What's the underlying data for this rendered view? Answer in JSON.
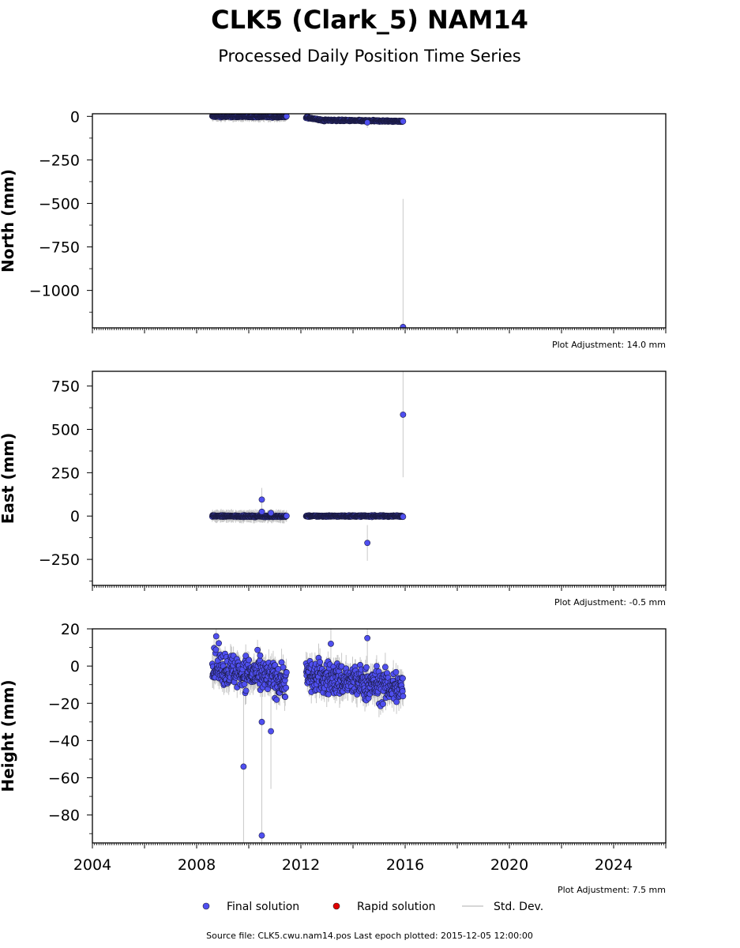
{
  "title": "CLK5 (Clark_5) NAM14",
  "subtitle": "Processed Daily Position Time Series",
  "footer": "Source file: CLK5.cwu.nam14.pos  Last epoch plotted: 2015-12-05 12:00:00",
  "legend": {
    "final": "Final solution",
    "rapid": "Rapid solution",
    "std": "Std. Dev."
  },
  "colors": {
    "final": "#4f4ff0",
    "rapid": "#e00000",
    "std": "#c8c8c8"
  },
  "chart_data": [
    {
      "type": "scatter",
      "ylabel": "North (mm)",
      "adjustment": "Plot Adjustment: 14.0 mm",
      "xlim": [
        2004,
        2026
      ],
      "ylim": [
        -1215,
        15
      ],
      "yticks": [
        0,
        -250,
        -500,
        -750,
        -1000
      ],
      "yticklabels": [
        "0",
        "−250",
        "−500",
        "−750",
        "−1000"
      ],
      "segments": [
        {
          "x_start": 2008.6,
          "x_end": 2011.45,
          "y_start": 0,
          "y_end": -2,
          "noise": 4,
          "std": 25
        },
        {
          "x_start": 2012.2,
          "x_end": 2012.9,
          "y_start": -5,
          "y_end": -25,
          "noise": 4,
          "std": 15
        },
        {
          "x_start": 2012.9,
          "x_end": 2015.92,
          "y_start": -22,
          "y_end": -28,
          "noise": 4,
          "std": 15
        }
      ],
      "outliers": [
        {
          "x": 2014.55,
          "y": -35
        },
        {
          "x": 2015.92,
          "y": -1210
        }
      ]
    },
    {
      "type": "scatter",
      "ylabel": "East (mm)",
      "adjustment": "Plot Adjustment: -0.5 mm",
      "xlim": [
        2004,
        2026
      ],
      "ylim": [
        -400,
        835
      ],
      "yticks": [
        750,
        500,
        250,
        0,
        -250
      ],
      "yticklabels": [
        "750",
        "500",
        "250",
        "0",
        "−250"
      ],
      "segments": [
        {
          "x_start": 2008.6,
          "x_end": 2011.45,
          "y_start": 0,
          "y_end": -2,
          "noise": 4,
          "std": 30
        },
        {
          "x_start": 2012.2,
          "x_end": 2015.92,
          "y_start": 0,
          "y_end": 0,
          "noise": 4,
          "std": 15
        }
      ],
      "outliers": [
        {
          "x": 2010.5,
          "y": 95
        },
        {
          "x": 2010.5,
          "y": 25
        },
        {
          "x": 2010.85,
          "y": 18
        },
        {
          "x": 2014.55,
          "y": -155
        },
        {
          "x": 2015.92,
          "y": 585
        }
      ]
    },
    {
      "type": "scatter",
      "ylabel": "Height (mm)",
      "adjustment": "Plot Adjustment: 7.5 mm",
      "xlim": [
        2004,
        2026
      ],
      "ylim": [
        -95,
        20
      ],
      "yticks": [
        20,
        0,
        -20,
        -40,
        -60,
        -80
      ],
      "yticklabels": [
        "20",
        "0",
        "−20",
        "−40",
        "−60",
        "−80"
      ],
      "xticks": [
        2004,
        2008,
        2012,
        2016,
        2020,
        2024
      ],
      "xticklabels": [
        "2004",
        "2008",
        "2012",
        "2016",
        "2020",
        "2024"
      ],
      "segments": [
        {
          "x_start": 2008.6,
          "x_end": 2011.45,
          "y_start": 0,
          "y_end": -8,
          "noise": 9,
          "std": 6
        },
        {
          "x_start": 2012.2,
          "x_end": 2015.92,
          "y_start": -5,
          "y_end": -12,
          "noise": 9,
          "std": 6
        }
      ],
      "outliers": [
        {
          "x": 2009.8,
          "y": -54
        },
        {
          "x": 2010.5,
          "y": -91
        },
        {
          "x": 2010.5,
          "y": -30
        },
        {
          "x": 2010.85,
          "y": -35
        },
        {
          "x": 2014.55,
          "y": 15
        },
        {
          "x": 2008.75,
          "y": 16
        },
        {
          "x": 2013.15,
          "y": 12
        }
      ]
    }
  ]
}
